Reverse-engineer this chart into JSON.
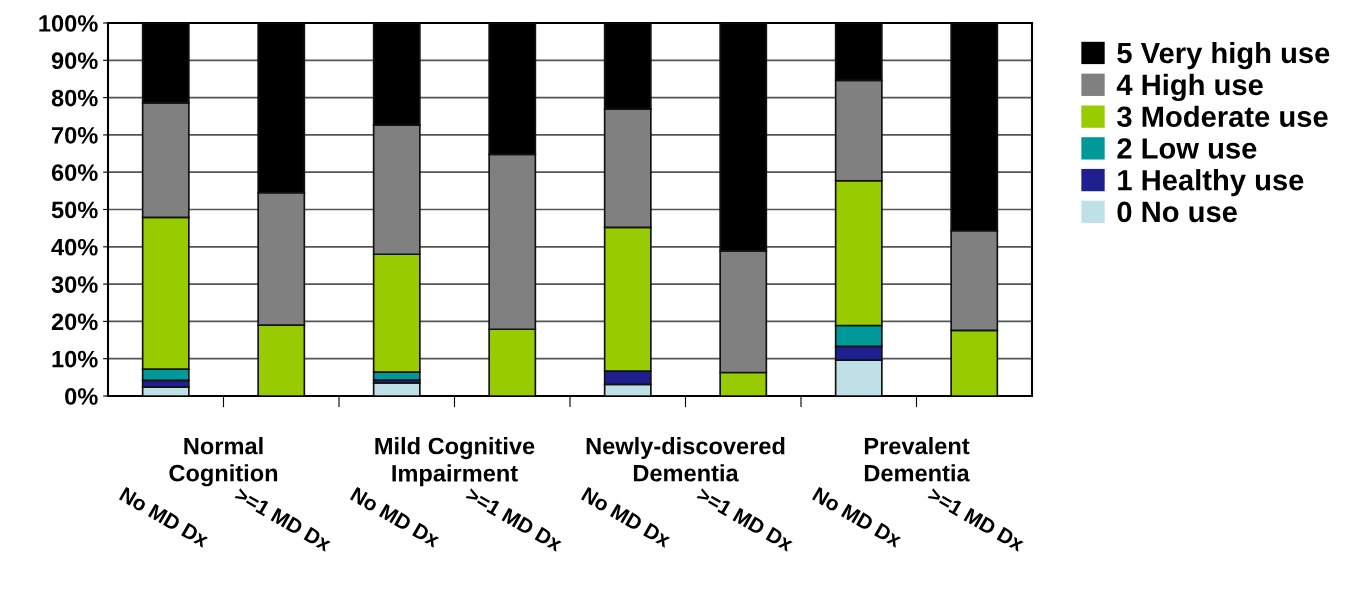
{
  "chart_data": {
    "type": "bar",
    "stacked": true,
    "categories": [
      "No MD Dx",
      ">=1 MD Dx",
      "No MD Dx",
      ">=1 MD Dx",
      "No MD Dx",
      ">=1 MD Dx",
      "No MD Dx",
      ">=1 MD Dx"
    ],
    "series": [
      {
        "name": "0 No use",
        "color": "#bfe0e6",
        "values": [
          2.4,
          0,
          3.5,
          0,
          3.1,
          0,
          9.6,
          0
        ]
      },
      {
        "name": "1 Healthy use",
        "color": "#1f1f8f",
        "values": [
          1.8,
          0,
          0.8,
          0,
          3.6,
          0,
          3.7,
          0
        ]
      },
      {
        "name": "2 Low use",
        "color": "#009999",
        "values": [
          3.0,
          0,
          2.1,
          0,
          0,
          0,
          5.6,
          0
        ]
      },
      {
        "name": "3 Moderate use",
        "color": "#99cc00",
        "values": [
          40.7,
          19.0,
          31.6,
          17.9,
          38.5,
          6.3,
          38.8,
          17.6
        ]
      },
      {
        "name": "4 High use",
        "color": "#808080",
        "values": [
          30.7,
          35.5,
          34.6,
          46.9,
          31.7,
          32.6,
          26.9,
          26.7
        ]
      },
      {
        "name": "5 Very high use",
        "color": "#000000",
        "values": [
          21.4,
          45.5,
          27.4,
          35.2,
          23.1,
          61.1,
          15.4,
          55.7
        ]
      }
    ],
    "ylim": [
      0,
      100
    ],
    "yticks": [
      {
        "value": 0,
        "label": "0%"
      },
      {
        "value": 10,
        "label": "10%"
      },
      {
        "value": 20,
        "label": "20%"
      },
      {
        "value": 30,
        "label": "30%"
      },
      {
        "value": 40,
        "label": "40%"
      },
      {
        "value": 50,
        "label": "50%"
      },
      {
        "value": 60,
        "label": "60%"
      },
      {
        "value": 70,
        "label": "70%"
      },
      {
        "value": 80,
        "label": "80%"
      },
      {
        "value": 90,
        "label": "90%"
      },
      {
        "value": 100,
        "label": "100%"
      }
    ],
    "annotations": [
      "Normal\nCognition",
      "Mild Cognitive\nImpairment",
      "Newly-discovered\nDementia",
      "Prevalent\nDementia"
    ],
    "grid": "y",
    "legend": "right"
  }
}
